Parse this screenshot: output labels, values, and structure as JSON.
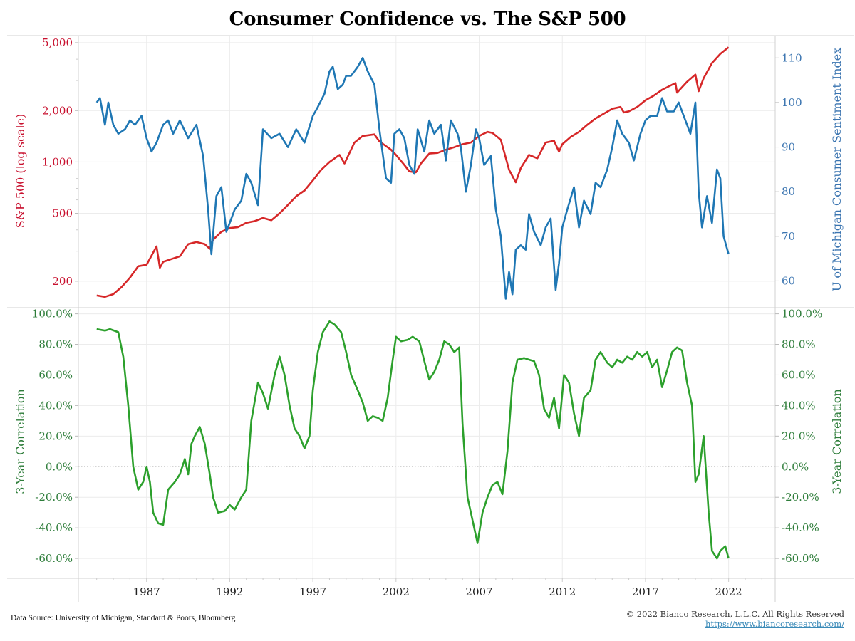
{
  "header": {
    "title": "Consumer Confidence vs. The S&P 500"
  },
  "footer": {
    "source": "Data Source: University of Michigan, Standard & Poors, Bloomberg",
    "copyright": "© 2022 Bianco Research, L.L.C. All Rights Reserved",
    "link": "https://www.biancoresearch.com/"
  },
  "colors": {
    "sp500": "#d62728",
    "sentiment": "#1f77b4",
    "correlation": "#2ca02c",
    "left_axis": "#c8102e",
    "right_axis": "#3a74b0",
    "corr_axis": "#2e7d3a"
  },
  "chart_data": [
    {
      "type": "line",
      "title": "Consumer Confidence vs. The S&P 500",
      "xlabel": "",
      "x_ticks": [
        "1987",
        "1992",
        "1997",
        "2002",
        "2007",
        "2012",
        "2017",
        "2022"
      ],
      "xlim": [
        1982.9,
        2024.8
      ],
      "y_left": {
        "label": "S&P 500 (log scale)",
        "scale": "log",
        "ticks": [
          "5,000",
          "2,000",
          "1,000",
          "500",
          "200"
        ],
        "tick_values": [
          5000,
          2000,
          1000,
          500,
          200
        ],
        "ylim": [
          140,
          5500
        ]
      },
      "y_right": {
        "label": "U of Michigan Consumer Sentiment Index",
        "ticks": [
          "110",
          "100",
          "90",
          "80",
          "70",
          "60"
        ],
        "tick_values": [
          110,
          100,
          90,
          80,
          70,
          60
        ],
        "ylim": [
          54,
          115
        ]
      },
      "grid": true,
      "series": [
        {
          "name": "S&P 500",
          "axis": "left",
          "x": [
            1984.0,
            1984.5,
            1985.0,
            1985.5,
            1986.0,
            1986.5,
            1987.0,
            1987.6,
            1987.8,
            1988.0,
            1988.5,
            1989.0,
            1989.5,
            1990.0,
            1990.5,
            1990.8,
            1991.0,
            1991.5,
            1992.0,
            1992.5,
            1993.0,
            1993.5,
            1994.0,
            1994.5,
            1995.0,
            1995.5,
            1996.0,
            1996.5,
            1997.0,
            1997.5,
            1998.0,
            1998.6,
            1998.9,
            1999.5,
            2000.0,
            2000.7,
            2001.0,
            2001.7,
            2002.0,
            2002.5,
            2002.8,
            2003.2,
            2003.5,
            2004.0,
            2004.5,
            2005.0,
            2005.5,
            2006.0,
            2006.5,
            2007.0,
            2007.5,
            2007.8,
            2008.3,
            2008.8,
            2009.2,
            2009.5,
            2010.0,
            2010.5,
            2011.0,
            2011.5,
            2011.8,
            2012.0,
            2012.5,
            2013.0,
            2013.5,
            2014.0,
            2014.5,
            2015.0,
            2015.5,
            2015.7,
            2016.0,
            2016.5,
            2017.0,
            2017.5,
            2018.0,
            2018.8,
            2018.9,
            2019.5,
            2020.0,
            2020.2,
            2020.5,
            2021.0,
            2021.5,
            2022.0
          ],
          "values": [
            165,
            162,
            168,
            185,
            210,
            245,
            250,
            320,
            240,
            260,
            270,
            280,
            330,
            340,
            330,
            310,
            350,
            390,
            410,
            415,
            440,
            450,
            470,
            455,
            500,
            560,
            630,
            680,
            780,
            900,
            1000,
            1100,
            980,
            1300,
            1420,
            1450,
            1320,
            1180,
            1100,
            960,
            880,
            870,
            980,
            1120,
            1130,
            1180,
            1220,
            1270,
            1300,
            1420,
            1500,
            1480,
            1350,
            900,
            760,
            920,
            1100,
            1050,
            1300,
            1330,
            1150,
            1270,
            1400,
            1500,
            1650,
            1800,
            1920,
            2050,
            2100,
            1950,
            1980,
            2100,
            2300,
            2450,
            2650,
            2900,
            2550,
            2950,
            3250,
            2600,
            3100,
            3800,
            4300,
            4700
          ]
        },
        {
          "name": "U of Michigan Consumer Sentiment",
          "axis": "right",
          "x": [
            1984.0,
            1984.2,
            1984.5,
            1984.7,
            1985.0,
            1985.3,
            1985.7,
            1986.0,
            1986.3,
            1986.7,
            1987.0,
            1987.3,
            1987.6,
            1988.0,
            1988.3,
            1988.6,
            1989.0,
            1989.5,
            1990.0,
            1990.4,
            1990.7,
            1990.9,
            1991.2,
            1991.5,
            1991.8,
            1992.0,
            1992.3,
            1992.7,
            1993.0,
            1993.3,
            1993.7,
            1994.0,
            1994.5,
            1995.0,
            1995.5,
            1996.0,
            1996.5,
            1997.0,
            1997.3,
            1997.7,
            1998.0,
            1998.2,
            1998.5,
            1998.8,
            1999.0,
            1999.3,
            1999.7,
            2000.0,
            2000.3,
            2000.7,
            2001.0,
            2001.4,
            2001.7,
            2001.9,
            2002.2,
            2002.5,
            2002.8,
            2003.1,
            2003.3,
            2003.7,
            2004.0,
            2004.3,
            2004.7,
            2005.0,
            2005.3,
            2005.7,
            2005.9,
            2006.2,
            2006.5,
            2006.8,
            2007.0,
            2007.3,
            2007.7,
            2008.0,
            2008.3,
            2008.6,
            2008.8,
            2009.0,
            2009.2,
            2009.5,
            2009.8,
            2010.0,
            2010.3,
            2010.7,
            2011.0,
            2011.3,
            2011.6,
            2011.8,
            2012.0,
            2012.3,
            2012.7,
            2013.0,
            2013.3,
            2013.7,
            2014.0,
            2014.3,
            2014.7,
            2015.0,
            2015.3,
            2015.6,
            2016.0,
            2016.3,
            2016.7,
            2017.0,
            2017.3,
            2017.7,
            2018.0,
            2018.3,
            2018.7,
            2019.0,
            2019.3,
            2019.7,
            2020.0,
            2020.2,
            2020.4,
            2020.7,
            2021.0,
            2021.3,
            2021.5,
            2021.7,
            2022.0
          ],
          "values": [
            100,
            101,
            95,
            100,
            95,
            93,
            94,
            96,
            95,
            97,
            92,
            89,
            91,
            95,
            96,
            93,
            96,
            92,
            95,
            88,
            76,
            66,
            79,
            81,
            71,
            73,
            76,
            78,
            84,
            82,
            77,
            94,
            92,
            93,
            90,
            94,
            91,
            97,
            99,
            102,
            107,
            108,
            103,
            104,
            106,
            106,
            108,
            110,
            107,
            104,
            94,
            83,
            82,
            93,
            94,
            92,
            86,
            84,
            94,
            89,
            96,
            93,
            95,
            87,
            96,
            93,
            90,
            80,
            86,
            94,
            92,
            86,
            88,
            76,
            70,
            56,
            62,
            57,
            67,
            68,
            67,
            75,
            71,
            68,
            72,
            74,
            58,
            64,
            72,
            76,
            81,
            72,
            78,
            75,
            82,
            81,
            85,
            90,
            96,
            93,
            91,
            87,
            93,
            96,
            97,
            97,
            101,
            98,
            98,
            100,
            97,
            93,
            100,
            80,
            72,
            79,
            73,
            85,
            83,
            70,
            66
          ]
        }
      ]
    },
    {
      "type": "line",
      "title": "",
      "xlabel": "",
      "x_ticks": [
        "1987",
        "1992",
        "1997",
        "2002",
        "2007",
        "2012",
        "2017",
        "2022"
      ],
      "xlim": [
        1982.9,
        2024.8
      ],
      "y_left": {
        "label": "3-Year Correlation",
        "ticks": [
          "100.0%",
          "80.0%",
          "60.0%",
          "40.0%",
          "20.0%",
          "0.0%",
          "-20.0%",
          "-40.0%",
          "-60.0%"
        ],
        "tick_values": [
          100,
          80,
          60,
          40,
          20,
          0,
          -20,
          -40,
          -60
        ],
        "ylim": [
          -73,
          104
        ]
      },
      "y_right": {
        "label": "3-Year Correlation",
        "ticks": [
          "100.0%",
          "80.0%",
          "60.0%",
          "40.0%",
          "20.0%",
          "0.0%",
          "-20.0%",
          "-40.0%",
          "-60.0%"
        ]
      },
      "reference_line": {
        "value": 0,
        "style": "dotted"
      },
      "grid": true,
      "series": [
        {
          "name": "3-Year Correlation",
          "axis": "left",
          "x": [
            1984.0,
            1984.5,
            1984.8,
            1985.3,
            1985.6,
            1985.9,
            1986.2,
            1986.5,
            1986.8,
            1987.0,
            1987.2,
            1987.4,
            1987.7,
            1988.0,
            1988.3,
            1988.7,
            1989.0,
            1989.3,
            1989.5,
            1989.7,
            1989.9,
            1990.2,
            1990.5,
            1990.8,
            1991.0,
            1991.3,
            1991.7,
            1992.0,
            1992.3,
            1992.7,
            1993.0,
            1993.3,
            1993.7,
            1994.0,
            1994.3,
            1994.7,
            1995.0,
            1995.3,
            1995.6,
            1995.9,
            1996.2,
            1996.5,
            1996.8,
            1997.0,
            1997.3,
            1997.6,
            1998.0,
            1998.3,
            1998.7,
            1999.0,
            1999.3,
            1999.7,
            2000.0,
            2000.3,
            2000.6,
            2000.9,
            2001.2,
            2001.5,
            2001.8,
            2002.0,
            2002.3,
            2002.7,
            2003.0,
            2003.4,
            2003.8,
            2004.0,
            2004.3,
            2004.6,
            2004.9,
            2005.2,
            2005.5,
            2005.8,
            2006.0,
            2006.3,
            2006.6,
            2006.9,
            2007.2,
            2007.5,
            2007.8,
            2008.1,
            2008.4,
            2008.7,
            2009.0,
            2009.3,
            2009.7,
            2010.0,
            2010.3,
            2010.6,
            2010.9,
            2011.2,
            2011.5,
            2011.8,
            2012.1,
            2012.4,
            2012.7,
            2013.0,
            2013.3,
            2013.7,
            2014.0,
            2014.3,
            2014.7,
            2015.0,
            2015.3,
            2015.6,
            2015.9,
            2016.2,
            2016.5,
            2016.8,
            2017.1,
            2017.4,
            2017.7,
            2018.0,
            2018.3,
            2018.6,
            2018.9,
            2019.2,
            2019.5,
            2019.8,
            2020.0,
            2020.2,
            2020.5,
            2020.8,
            2021.0,
            2021.3,
            2021.5,
            2021.8,
            2022.0
          ],
          "values": [
            90,
            89,
            90,
            88,
            72,
            40,
            0,
            -15,
            -10,
            0,
            -10,
            -30,
            -37,
            -38,
            -15,
            -10,
            -5,
            5,
            -5,
            15,
            20,
            26,
            15,
            -5,
            -20,
            -30,
            -29,
            -25,
            -28,
            -20,
            -15,
            30,
            55,
            48,
            38,
            60,
            72,
            60,
            40,
            25,
            20,
            12,
            20,
            50,
            75,
            88,
            95,
            93,
            88,
            75,
            60,
            50,
            42,
            30,
            33,
            32,
            30,
            45,
            70,
            85,
            82,
            83,
            85,
            82,
            65,
            57,
            62,
            70,
            82,
            80,
            75,
            78,
            28,
            -20,
            -35,
            -50,
            -30,
            -20,
            -12,
            -10,
            -18,
            10,
            55,
            70,
            71,
            70,
            69,
            60,
            38,
            32,
            45,
            25,
            60,
            55,
            35,
            20,
            45,
            50,
            70,
            75,
            68,
            65,
            70,
            68,
            72,
            70,
            75,
            72,
            75,
            65,
            70,
            52,
            63,
            75,
            78,
            76,
            55,
            40,
            -10,
            -5,
            20,
            -30,
            -55,
            -60,
            -55,
            -52,
            -60
          ]
        }
      ]
    }
  ]
}
